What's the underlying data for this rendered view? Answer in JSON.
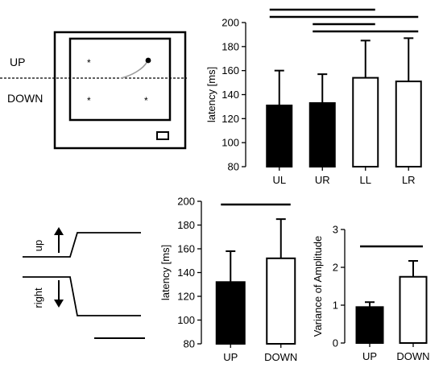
{
  "colors": {
    "filled": "#000000",
    "open": "#ffffff",
    "stroke": "#000000",
    "trace": "#9a9a9a",
    "midline": "#000000"
  },
  "schematic": {
    "up_label": "UP",
    "down_label": "DOWN",
    "target_marker": "*"
  },
  "traces": {
    "up_label": "up",
    "right_label": "right",
    "up_arrow_icon": "arrow-up-icon",
    "down_arrow_icon": "arrow-down-icon"
  },
  "chart_data": [
    {
      "type": "bar",
      "ylabel": "latency [ms]",
      "ylim": [
        80,
        200
      ],
      "yticks": [
        "80",
        "100",
        "120",
        "140",
        "160",
        "180",
        "200"
      ],
      "categories": [
        "UL",
        "UR",
        "LL",
        "LR"
      ],
      "values": [
        131,
        133,
        154,
        151
      ],
      "errors_upper": [
        160,
        157,
        185,
        187
      ],
      "fills": [
        "filled",
        "filled",
        "open",
        "open"
      ],
      "significance": [
        [
          "UL",
          "LL"
        ],
        [
          "UL",
          "LR"
        ],
        [
          "UR",
          "LL"
        ],
        [
          "UR",
          "LR"
        ]
      ]
    },
    {
      "type": "bar",
      "ylabel": "latency [ms]",
      "ylim": [
        80,
        200
      ],
      "yticks": [
        "80",
        "100",
        "120",
        "140",
        "160",
        "180",
        "200"
      ],
      "categories": [
        "UP",
        "DOWN"
      ],
      "values": [
        132,
        152
      ],
      "errors_upper": [
        158,
        185
      ],
      "fills": [
        "filled",
        "open"
      ],
      "significance": [
        [
          "UP",
          "DOWN"
        ]
      ]
    },
    {
      "type": "bar",
      "ylabel": "Variance of Amplitude",
      "ylim": [
        0,
        3
      ],
      "yticks": [
        "0",
        "1",
        "2",
        "3"
      ],
      "categories": [
        "UP",
        "DOWN"
      ],
      "values": [
        0.95,
        1.75
      ],
      "errors_upper": [
        1.08,
        2.17
      ],
      "fills": [
        "filled",
        "open"
      ],
      "significance": [
        [
          "UP",
          "DOWN"
        ]
      ]
    }
  ]
}
